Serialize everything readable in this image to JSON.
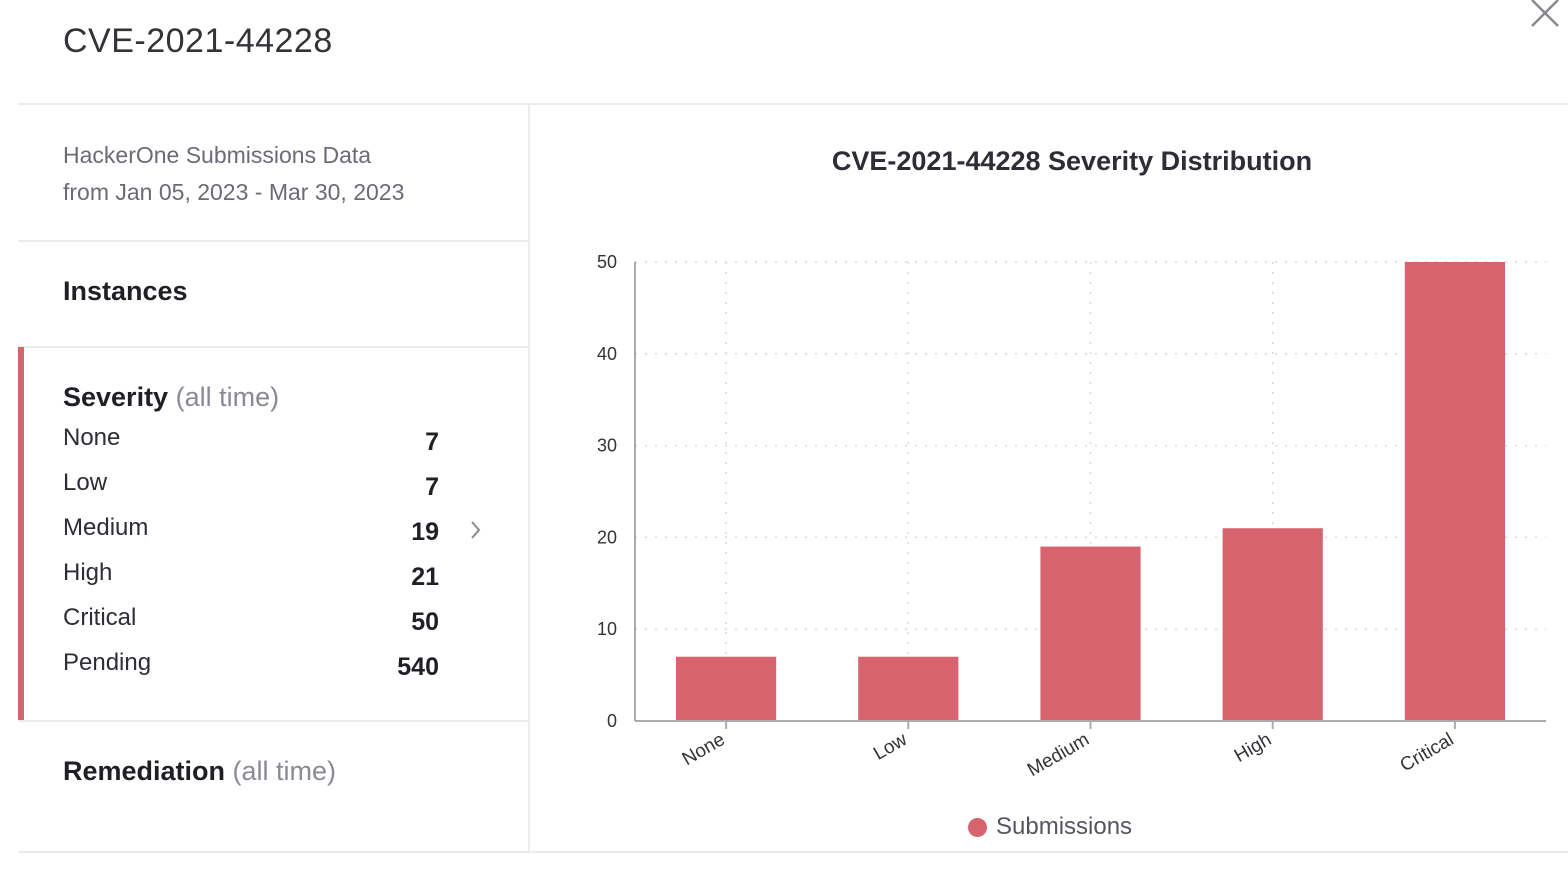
{
  "modal": {
    "title": "CVE-2021-44228",
    "close_icon": "close-icon"
  },
  "source": {
    "line1": "HackerOne Submissions Data",
    "line2": "from Jan 05, 2023 - Mar 30, 2023"
  },
  "instances": {
    "label": "Instances"
  },
  "severity": {
    "heading": "Severity",
    "qualifier": "(all time)",
    "rows": [
      {
        "label": "None",
        "value": "7"
      },
      {
        "label": "Low",
        "value": "7"
      },
      {
        "label": "Medium",
        "value": "19"
      },
      {
        "label": "High",
        "value": "21"
      },
      {
        "label": "Critical",
        "value": "50"
      },
      {
        "label": "Pending",
        "value": "540"
      }
    ],
    "expand_icon": "chevron-right-icon"
  },
  "remediation": {
    "heading": "Remediation",
    "qualifier": "(all time)"
  },
  "colors": {
    "accent": "#d7636f",
    "bar": "#d7636f"
  },
  "chart_data": {
    "type": "bar",
    "title": "CVE-2021-44228 Severity Distribution",
    "categories": [
      "None",
      "Low",
      "Medium",
      "High",
      "Critical"
    ],
    "series": [
      {
        "name": "Submissions",
        "values": [
          7,
          7,
          19,
          21,
          50
        ]
      }
    ],
    "xlabel": "",
    "ylabel": "",
    "ylim": [
      0,
      50
    ],
    "yticks": [
      0,
      10,
      20,
      30,
      40,
      50
    ],
    "grid": true,
    "legend": "bottom-center"
  }
}
